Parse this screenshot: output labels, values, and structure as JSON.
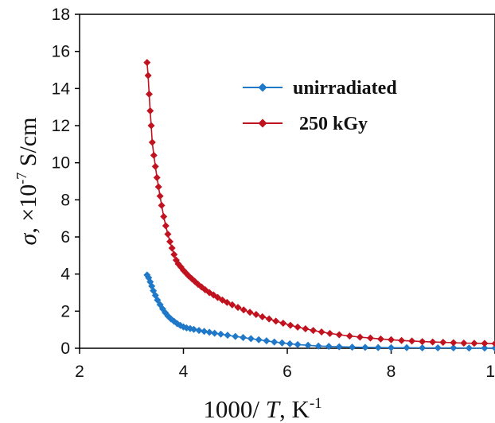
{
  "chart_data": {
    "type": "scatter",
    "title": "",
    "xlabel": {
      "prefix": "1000/ ",
      "symbol": "T",
      "middle": ", K",
      "superscript": "-1"
    },
    "ylabel": {
      "symbol": "σ",
      "middle": ", ×10",
      "superscript": "-7",
      "suffix": " S/cm"
    },
    "xlim": [
      2,
      10
    ],
    "ylim": [
      0,
      18
    ],
    "xticks": [
      "2",
      "4",
      "6",
      "8",
      "10"
    ],
    "yticks": [
      "0",
      "2",
      "4",
      "6",
      "8",
      "10",
      "12",
      "14",
      "16",
      "18"
    ],
    "grid": false,
    "legend_position": "upper-right",
    "series": [
      {
        "name": "unirradiated",
        "color": "#1f78c8",
        "marker": "diamond",
        "x": [
          3.3,
          3.33,
          3.36,
          3.39,
          3.42,
          3.46,
          3.5,
          3.55,
          3.6,
          3.65,
          3.7,
          3.76,
          3.82,
          3.88,
          3.94,
          4.0,
          4.06,
          4.13,
          4.2,
          4.3,
          4.4,
          4.5,
          4.6,
          4.72,
          4.85,
          5.0,
          5.15,
          5.3,
          5.45,
          5.6,
          5.75,
          5.9,
          6.05,
          6.2,
          6.4,
          6.6,
          6.8,
          7.0,
          7.25,
          7.5,
          7.75,
          8.0,
          8.3,
          8.6,
          8.9,
          9.2,
          9.5,
          9.8,
          10.0
        ],
        "y": [
          3.95,
          3.8,
          3.58,
          3.35,
          3.1,
          2.85,
          2.6,
          2.35,
          2.12,
          1.92,
          1.74,
          1.58,
          1.45,
          1.33,
          1.23,
          1.15,
          1.1,
          1.06,
          1.02,
          0.96,
          0.91,
          0.86,
          0.81,
          0.76,
          0.7,
          0.64,
          0.58,
          0.52,
          0.46,
          0.4,
          0.34,
          0.29,
          0.24,
          0.2,
          0.16,
          0.12,
          0.1,
          0.08,
          0.06,
          0.05,
          0.04,
          0.03,
          0.03,
          0.02,
          0.02,
          0.02,
          0.01,
          0.01,
          0.01
        ]
      },
      {
        "name": "250 kGy",
        "color": "#c1121f",
        "marker": "diamond",
        "x": [
          3.3,
          3.32,
          3.34,
          3.36,
          3.38,
          3.4,
          3.43,
          3.46,
          3.49,
          3.52,
          3.55,
          3.58,
          3.62,
          3.66,
          3.7,
          3.74,
          3.78,
          3.82,
          3.86,
          3.9,
          3.95,
          4.0,
          4.05,
          4.1,
          4.16,
          4.22,
          4.28,
          4.35,
          4.42,
          4.5,
          4.58,
          4.66,
          4.75,
          4.84,
          4.94,
          5.05,
          5.16,
          5.28,
          5.4,
          5.52,
          5.65,
          5.78,
          5.92,
          6.06,
          6.2,
          6.35,
          6.5,
          6.66,
          6.82,
          7.0,
          7.2,
          7.4,
          7.6,
          7.8,
          8.0,
          8.2,
          8.4,
          8.6,
          8.8,
          9.0,
          9.2,
          9.4,
          9.6,
          9.8,
          10.0
        ],
        "y": [
          15.4,
          14.7,
          13.7,
          12.8,
          12.0,
          11.1,
          10.4,
          9.8,
          9.2,
          8.7,
          8.2,
          7.7,
          7.1,
          6.6,
          6.15,
          5.75,
          5.4,
          5.05,
          4.75,
          4.55,
          4.38,
          4.2,
          4.05,
          3.9,
          3.75,
          3.6,
          3.45,
          3.3,
          3.15,
          3.0,
          2.87,
          2.74,
          2.6,
          2.47,
          2.34,
          2.2,
          2.07,
          1.94,
          1.82,
          1.7,
          1.58,
          1.46,
          1.35,
          1.24,
          1.14,
          1.05,
          0.96,
          0.88,
          0.8,
          0.73,
          0.66,
          0.6,
          0.55,
          0.5,
          0.46,
          0.42,
          0.39,
          0.36,
          0.34,
          0.32,
          0.3,
          0.28,
          0.27,
          0.26,
          0.25
        ]
      }
    ]
  }
}
